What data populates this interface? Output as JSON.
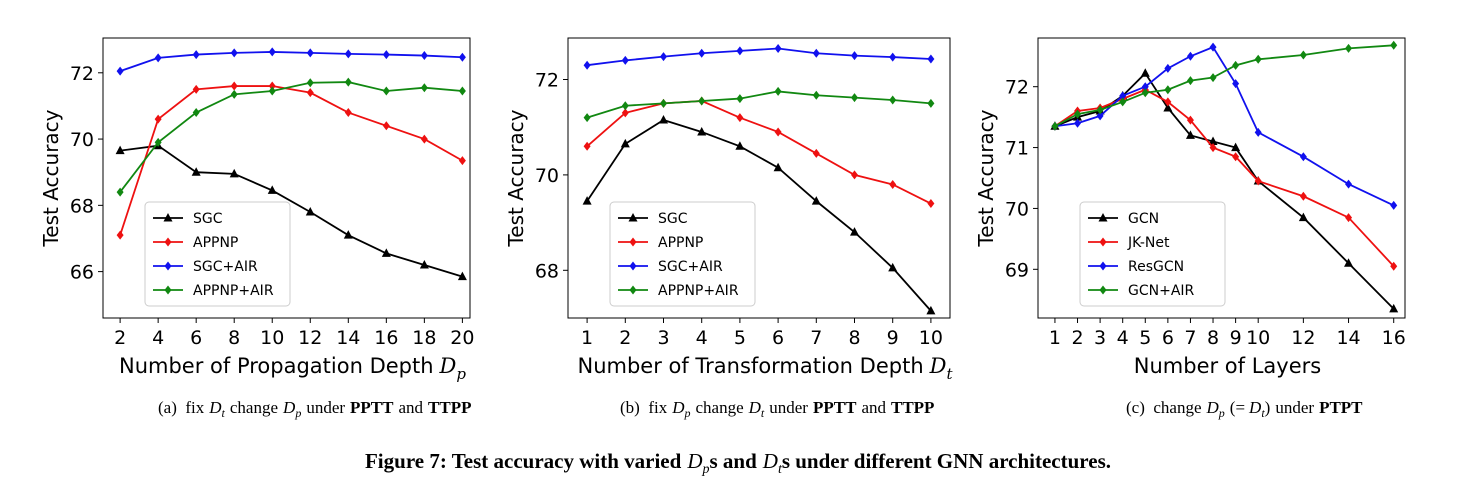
{
  "chart_data": [
    {
      "type": "line",
      "ylabel": "Test Accuracy",
      "xlabel": "Number of Propagation Depth",
      "xlabel_symbol": "D",
      "xlabel_subscript": "p",
      "x": [
        2,
        4,
        6,
        8,
        10,
        12,
        14,
        16,
        18,
        20
      ],
      "xlim": [
        1.1,
        20.4
      ],
      "xticks": [
        2,
        4,
        6,
        8,
        10,
        12,
        14,
        16,
        18,
        20
      ],
      "ylim": [
        64.6,
        73.05
      ],
      "yticks": [
        66,
        68,
        70,
        72
      ],
      "legend": "lower left",
      "series": [
        {
          "name": "SGC",
          "color": "#000000",
          "marker": "triangle",
          "values": [
            69.65,
            69.8,
            69.0,
            68.95,
            68.45,
            67.8,
            67.1,
            66.55,
            66.2,
            65.85
          ]
        },
        {
          "name": "APPNP",
          "color": "#ee1111",
          "marker": "diamond",
          "values": [
            67.1,
            70.6,
            71.5,
            71.6,
            71.6,
            71.4,
            70.8,
            70.4,
            70.0,
            69.35
          ]
        },
        {
          "name": "SGC+AIR",
          "color": "#1111ee",
          "marker": "diamond",
          "values": [
            72.05,
            72.45,
            72.55,
            72.6,
            72.63,
            72.6,
            72.57,
            72.55,
            72.52,
            72.47
          ]
        },
        {
          "name": "APPNP+AIR",
          "color": "#118811",
          "marker": "diamond",
          "values": [
            68.4,
            69.9,
            70.8,
            71.35,
            71.45,
            71.7,
            71.72,
            71.45,
            71.55,
            71.45
          ]
        }
      ]
    },
    {
      "type": "line",
      "ylabel": "Test Accuracy",
      "xlabel": "Number of Transformation Depth",
      "xlabel_symbol": "D",
      "xlabel_subscript": "t",
      "x": [
        1,
        2,
        3,
        4,
        5,
        6,
        7,
        8,
        9,
        10
      ],
      "xlim": [
        0.5,
        10.5
      ],
      "xticks": [
        1,
        2,
        3,
        4,
        5,
        6,
        7,
        8,
        9,
        10
      ],
      "ylim": [
        67.0,
        72.87
      ],
      "yticks": [
        68,
        70,
        72
      ],
      "legend": "lower left",
      "series": [
        {
          "name": "SGC",
          "color": "#000000",
          "marker": "triangle",
          "values": [
            69.45,
            70.65,
            71.15,
            70.9,
            70.6,
            70.15,
            69.45,
            68.8,
            68.05,
            67.15
          ]
        },
        {
          "name": "APPNP",
          "color": "#ee1111",
          "marker": "diamond",
          "values": [
            70.6,
            71.3,
            71.5,
            71.55,
            71.2,
            70.9,
            70.45,
            70.0,
            69.8,
            69.4
          ]
        },
        {
          "name": "SGC+AIR",
          "color": "#1111ee",
          "marker": "diamond",
          "values": [
            72.3,
            72.4,
            72.48,
            72.55,
            72.6,
            72.65,
            72.55,
            72.5,
            72.47,
            72.43
          ]
        },
        {
          "name": "APPNP+AIR",
          "color": "#118811",
          "marker": "diamond",
          "values": [
            71.2,
            71.45,
            71.5,
            71.55,
            71.6,
            71.75,
            71.67,
            71.62,
            71.57,
            71.5
          ]
        }
      ]
    },
    {
      "type": "line",
      "ylabel": "Test Accuracy",
      "xlabel": "Number of Layers",
      "x": [
        1,
        2,
        3,
        4,
        5,
        6,
        7,
        8,
        9,
        10,
        12,
        14,
        16
      ],
      "xlim": [
        0.25,
        16.5
      ],
      "xticks": [
        1,
        2,
        3,
        4,
        5,
        6,
        7,
        8,
        9,
        10,
        12,
        14,
        16
      ],
      "ylim": [
        68.2,
        72.8
      ],
      "yticks": [
        69,
        70,
        71,
        72
      ],
      "legend": "lower left",
      "series": [
        {
          "name": "GCN",
          "color": "#000000",
          "marker": "triangle",
          "values": [
            71.35,
            71.5,
            71.6,
            71.85,
            72.22,
            71.65,
            71.2,
            71.1,
            71.0,
            70.45,
            69.85,
            69.1,
            68.35
          ]
        },
        {
          "name": "JK-Net",
          "color": "#ee1111",
          "marker": "diamond",
          "values": [
            71.35,
            71.6,
            71.65,
            71.8,
            71.95,
            71.75,
            71.45,
            71.0,
            70.85,
            70.45,
            70.2,
            69.85,
            69.05
          ]
        },
        {
          "name": "ResGCN",
          "color": "#1111ee",
          "marker": "diamond",
          "values": [
            71.35,
            71.4,
            71.52,
            71.85,
            72.0,
            72.3,
            72.5,
            72.65,
            72.05,
            71.25,
            70.85,
            70.4,
            70.05
          ]
        },
        {
          "name": "GCN+AIR",
          "color": "#118811",
          "marker": "diamond",
          "values": [
            71.35,
            71.55,
            71.62,
            71.75,
            71.9,
            71.95,
            72.1,
            72.15,
            72.35,
            72.45,
            72.52,
            72.63,
            72.68
          ]
        }
      ]
    }
  ],
  "captions": [
    {
      "parts": [
        "(a)  fix",
        "D",
        "t",
        "change",
        "D",
        "p",
        "under",
        "PPTT",
        "and",
        "TTPP"
      ]
    },
    {
      "parts": [
        "(b)  fix",
        "D",
        "p",
        "change",
        "D",
        "t",
        "under",
        "PPTT",
        "and",
        "TTPP"
      ]
    },
    {
      "parts": [
        "(c)  change",
        "D",
        "p",
        "(=",
        "D",
        "t",
        ")",
        "under",
        "PTPT"
      ]
    }
  ],
  "figure_caption": {
    "parts": [
      "Figure 7: Test accuracy with varied",
      "D",
      "p",
      "s and",
      "D",
      "t",
      "s under different GNN architectures."
    ]
  }
}
